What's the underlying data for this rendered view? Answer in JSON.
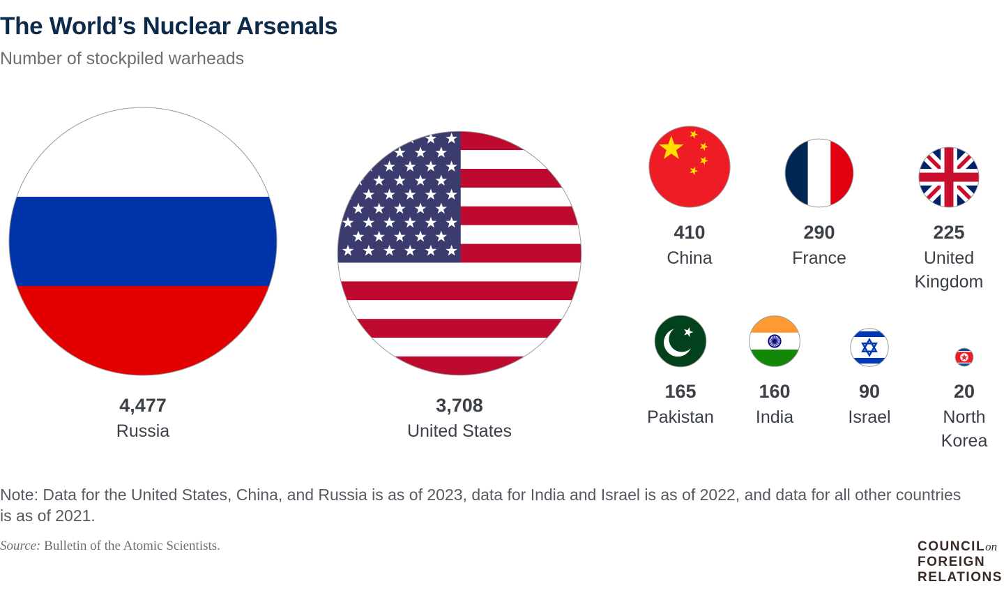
{
  "title": "The World’s Nuclear Arsenals",
  "subtitle": "Number of stockpiled warheads",
  "chart_data": {
    "type": "bubble",
    "title": "The World’s Nuclear Arsenals",
    "subtitle": "Number of stockpiled warheads",
    "encoding": "circle area proportional to value; each circle filled with country flag",
    "series": [
      {
        "country": "Russia",
        "value": 4477,
        "value_label": "4,477",
        "flag": "russia"
      },
      {
        "country": "United States",
        "value": 3708,
        "value_label": "3,708",
        "flag": "usa"
      },
      {
        "country": "China",
        "value": 410,
        "value_label": "410",
        "flag": "china"
      },
      {
        "country": "France",
        "value": 290,
        "value_label": "290",
        "flag": "france"
      },
      {
        "country": "United Kingdom",
        "value": 225,
        "value_label": "225",
        "flag": "uk"
      },
      {
        "country": "Pakistan",
        "value": 165,
        "value_label": "165",
        "flag": "pakistan"
      },
      {
        "country": "India",
        "value": 160,
        "value_label": "160",
        "flag": "india"
      },
      {
        "country": "Israel",
        "value": 90,
        "value_label": "90",
        "flag": "israel"
      },
      {
        "country": "North Korea",
        "value": 20,
        "value_label": "20",
        "flag": "north-korea"
      }
    ]
  },
  "note": "Note: Data for the United States, China, and Russia is as of 2023, data for India and Israel is as of 2022, and data for all other countries is as of 2021.",
  "source_label": "Source:",
  "source_text": " Bulletin of the Atomic Scientists.",
  "logo": {
    "line1": "COUNCIL",
    "on": "on",
    "line2": "FOREIGN",
    "line3": "RELATIONS"
  }
}
